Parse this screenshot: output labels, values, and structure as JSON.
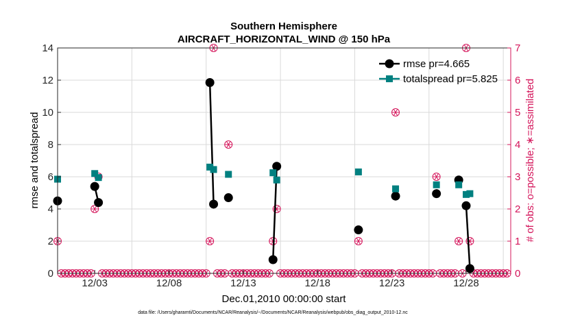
{
  "colors": {
    "rmse": "#000000",
    "spread": "#008080",
    "obs": "#D4145A",
    "grid": "#d9d9d9",
    "axis": "#262626"
  },
  "chart_data": {
    "type": "line",
    "title": "Southern Hemisphere",
    "subtitle": "AIRCRAFT_HORIZONTAL_WIND @ 150 hPa",
    "xlabel": "Dec.01,2010 00:00:00 start",
    "ylabel_left": "rmse and totalspread",
    "ylabel_right": "# of obs: o=possible; ∗=assimilated",
    "footnote": "data file: /Users/gharamti/Documents/NCAR/Reanalysis/~/Documents/NCAR/Reanalysis/webpub/obs_diag_output_2010-12.nc",
    "xlim": [
      1,
      31.5
    ],
    "ylim_left": [
      0,
      14
    ],
    "ylim_right": [
      0,
      7
    ],
    "yticks_left": [
      0,
      2,
      4,
      6,
      8,
      10,
      12,
      14
    ],
    "yticks_right": [
      0,
      1,
      2,
      3,
      4,
      5,
      6,
      7
    ],
    "xticks": [
      {
        "x": 3.5,
        "label": "12/03"
      },
      {
        "x": 8.5,
        "label": "12/08"
      },
      {
        "x": 13.5,
        "label": "12/13"
      },
      {
        "x": 18.5,
        "label": "12/18"
      },
      {
        "x": 23.5,
        "label": "12/23"
      },
      {
        "x": 28.5,
        "label": "12/28"
      }
    ],
    "grid_x": [
      6,
      11,
      16,
      21,
      26,
      31
    ],
    "legend": {
      "placement": "top-right",
      "entries": [
        "rmse pr=4.665",
        "totalspread pr=5.825"
      ]
    },
    "series": [
      {
        "name": "rmse pr=4.665",
        "style": "line-circle",
        "segments": [
          [
            [
              1.0,
              4.5
            ]
          ],
          [
            [
              3.5,
              5.4
            ],
            [
              3.75,
              4.4
            ]
          ],
          [
            [
              11.25,
              11.85
            ],
            [
              11.5,
              4.3
            ]
          ],
          [
            [
              12.5,
              4.7
            ]
          ],
          [
            [
              15.5,
              0.85
            ],
            [
              15.75,
              6.65
            ]
          ],
          [
            [
              21.25,
              2.7
            ]
          ],
          [
            [
              23.75,
              4.8
            ]
          ],
          [
            [
              26.5,
              4.95
            ]
          ],
          [
            [
              28.0,
              5.8
            ]
          ],
          [
            [
              28.5,
              4.2
            ],
            [
              28.75,
              0.3
            ]
          ]
        ]
      },
      {
        "name": "totalspread pr=5.825",
        "style": "line-square",
        "segments": [
          [
            [
              1.0,
              5.85
            ]
          ],
          [
            [
              3.5,
              6.2
            ],
            [
              3.75,
              5.95
            ]
          ],
          [
            [
              11.25,
              6.6
            ],
            [
              11.5,
              6.45
            ]
          ],
          [
            [
              12.5,
              6.15
            ]
          ],
          [
            [
              15.5,
              6.25
            ],
            [
              15.75,
              5.8
            ]
          ],
          [
            [
              21.25,
              6.3
            ]
          ],
          [
            [
              23.75,
              5.25
            ]
          ],
          [
            [
              26.5,
              5.5
            ]
          ],
          [
            [
              28.0,
              5.5
            ]
          ],
          [
            [
              28.5,
              4.9
            ],
            [
              28.75,
              4.95
            ]
          ]
        ]
      }
    ],
    "obs_possible": [
      {
        "x": 1.0,
        "count": 1
      },
      {
        "x": 3.5,
        "count": 2
      },
      {
        "x": 3.75,
        "count": 3
      },
      {
        "x": 11.25,
        "count": 1
      },
      {
        "x": 11.5,
        "count": 7
      },
      {
        "x": 12.5,
        "count": 4
      },
      {
        "x": 15.5,
        "count": 1
      },
      {
        "x": 15.75,
        "count": 2
      },
      {
        "x": 21.25,
        "count": 1
      },
      {
        "x": 23.75,
        "count": 5
      },
      {
        "x": 26.5,
        "count": 3
      },
      {
        "x": 28.0,
        "count": 1
      },
      {
        "x": 28.5,
        "count": 7
      },
      {
        "x": 28.75,
        "count": 1
      }
    ],
    "obs_zero_range": {
      "start": 1.0,
      "end": 31.25,
      "step": 0.25,
      "count": 0
    }
  }
}
